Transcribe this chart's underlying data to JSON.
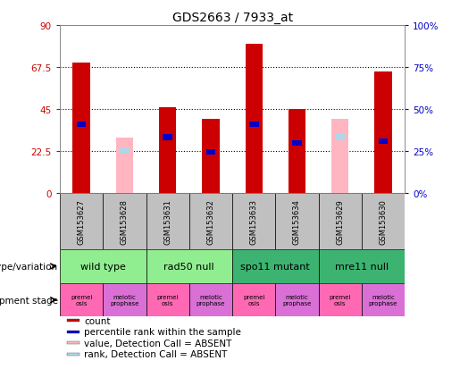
{
  "title": "GDS2663 / 7933_at",
  "samples": [
    "GSM153627",
    "GSM153628",
    "GSM153631",
    "GSM153632",
    "GSM153633",
    "GSM153634",
    "GSM153629",
    "GSM153630"
  ],
  "count_values": [
    70,
    0,
    46,
    40,
    80,
    45,
    0,
    65
  ],
  "count_absent": [
    0,
    30,
    0,
    0,
    0,
    0,
    40,
    0
  ],
  "rank_values": [
    37,
    0,
    30,
    22,
    37,
    27,
    0,
    28
  ],
  "rank_absent": [
    0,
    23,
    0,
    0,
    0,
    0,
    30,
    0
  ],
  "ylim_left": [
    0,
    90
  ],
  "ylim_right": [
    0,
    100
  ],
  "yticks_left": [
    0,
    22.5,
    45,
    67.5,
    90
  ],
  "yticks_right": [
    0,
    25,
    50,
    75,
    100
  ],
  "ytick_labels_left": [
    "0",
    "22.5",
    "45",
    "67.5",
    "90"
  ],
  "ytick_labels_right": [
    "0%",
    "25%",
    "50%",
    "75%",
    "100%"
  ],
  "color_red": "#CC0000",
  "color_pink": "#FFB6C1",
  "color_blue": "#0000CC",
  "color_lightblue": "#ADD8E6",
  "bar_width": 0.4,
  "genotype_groups": [
    {
      "label": "wild type",
      "start": 0,
      "end": 2,
      "color": "#90EE90"
    },
    {
      "label": "rad50 null",
      "start": 2,
      "end": 4,
      "color": "#90EE90"
    },
    {
      "label": "spo11 mutant",
      "start": 4,
      "end": 6,
      "color": "#3CB371"
    },
    {
      "label": "mre11 null",
      "start": 6,
      "end": 8,
      "color": "#3CB371"
    }
  ],
  "dev_stage_colors": [
    "#FF69B4",
    "#DA70D6",
    "#FF69B4",
    "#DA70D6",
    "#FF69B4",
    "#DA70D6",
    "#FF69B4",
    "#DA70D6"
  ],
  "dev_stage_labels": [
    "premei\nosis",
    "meiotic\nprophase",
    "premei\nosis",
    "meiotic\nprophase",
    "premei\nosis",
    "meiotic\nprophase",
    "premei\nosis",
    "meiotic\nprophase"
  ],
  "legend_items": [
    {
      "label": "count",
      "color": "#CC0000"
    },
    {
      "label": "percentile rank within the sample",
      "color": "#0000CC"
    },
    {
      "label": "value, Detection Call = ABSENT",
      "color": "#FFB6C1"
    },
    {
      "label": "rank, Detection Call = ABSENT",
      "color": "#ADD8E6"
    }
  ],
  "left_axis_color": "#CC0000",
  "right_axis_color": "#0000CC",
  "sample_bg_color": "#C0C0C0",
  "background_color": "#FFFFFF"
}
